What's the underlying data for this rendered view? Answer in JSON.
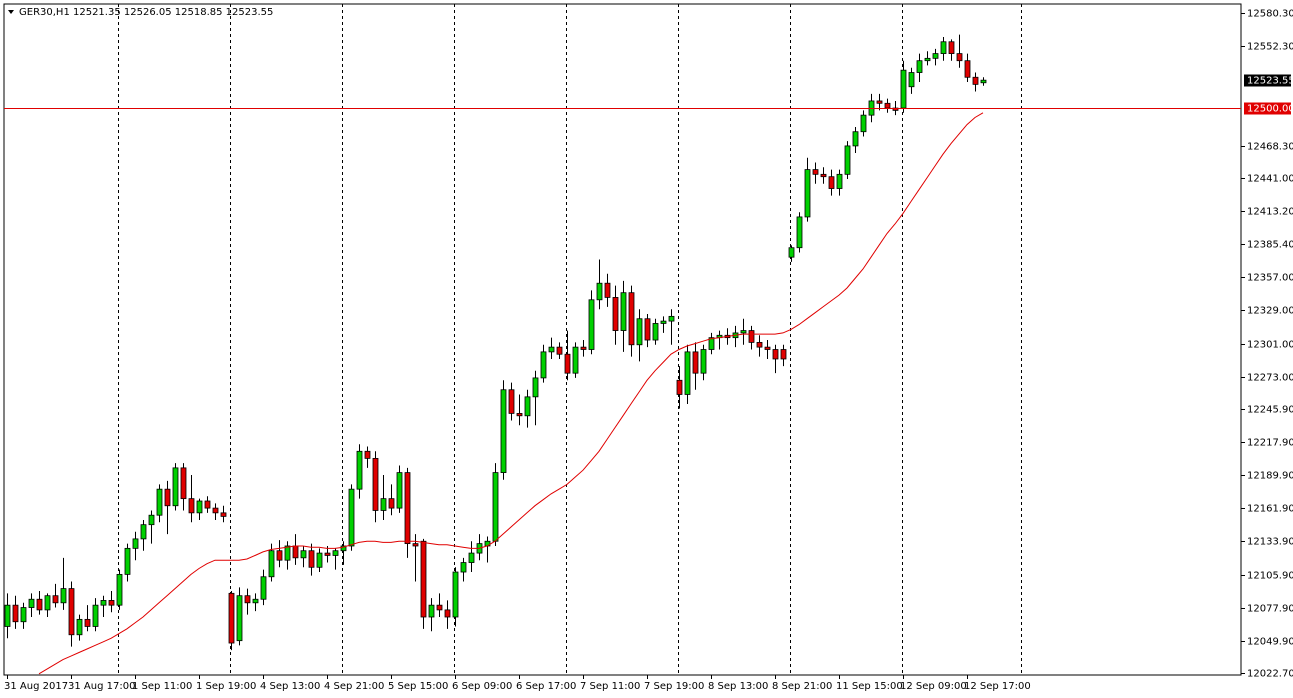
{
  "chart_data": {
    "type": "candlestick",
    "header": "GER30,H1  12521.35 12526.05 12518.85 12523.55",
    "up_color": "#00d000",
    "down_color": "#e00000",
    "wick_color": "#000000",
    "ylim": [
      12021.0,
      12587.9
    ],
    "yticks": [
      {
        "value": 12580.3,
        "label": "12580.30"
      },
      {
        "value": 12552.3,
        "label": "12552.30"
      },
      {
        "value": 12468.3,
        "label": "12468.30"
      },
      {
        "value": 12441.0,
        "label": "12441.00"
      },
      {
        "value": 12413.2,
        "label": "12413.20"
      },
      {
        "value": 12385.4,
        "label": "12385.40"
      },
      {
        "value": 12357.0,
        "label": "12357.00"
      },
      {
        "value": 12329.0,
        "label": "12329.00"
      },
      {
        "value": 12301.0,
        "label": "12301.00"
      },
      {
        "value": 12273.0,
        "label": "12273.00"
      },
      {
        "value": 12245.9,
        "label": "12245.90"
      },
      {
        "value": 12217.9,
        "label": "12217.90"
      },
      {
        "value": 12189.9,
        "label": "12189.90"
      },
      {
        "value": 12161.9,
        "label": "12161.90"
      },
      {
        "value": 12133.9,
        "label": "12133.90"
      },
      {
        "value": 12105.9,
        "label": "12105.90"
      },
      {
        "value": 12077.9,
        "label": "12077.90"
      },
      {
        "value": 12049.9,
        "label": "12049.90"
      },
      {
        "value": 12022.7,
        "label": "12022.70"
      }
    ],
    "hline": {
      "value": 12500,
      "label": "12500.00",
      "color": "#e00000"
    },
    "price_label": {
      "value": 12523.55,
      "label": "12523.55"
    },
    "categories": [
      "31 Aug 2017",
      null,
      null,
      null,
      null,
      null,
      null,
      null,
      "31 Aug 17:00",
      null,
      null,
      null,
      null,
      null,
      null,
      null,
      "1 Sep 11:00",
      null,
      null,
      null,
      null,
      null,
      null,
      null,
      "1 Sep 19:00",
      null,
      null,
      null,
      null,
      null,
      null,
      null,
      "4 Sep 13:00",
      null,
      null,
      null,
      null,
      null,
      null,
      null,
      "4 Sep 21:00",
      null,
      null,
      null,
      null,
      null,
      null,
      null,
      "5 Sep 15:00",
      null,
      null,
      null,
      null,
      null,
      null,
      null,
      "6 Sep 09:00",
      null,
      null,
      null,
      null,
      null,
      null,
      null,
      "6 Sep 17:00",
      null,
      null,
      null,
      null,
      null,
      null,
      null,
      "7 Sep 11:00",
      null,
      null,
      null,
      null,
      null,
      null,
      null,
      "7 Sep 19:00",
      null,
      null,
      null,
      null,
      null,
      null,
      null,
      "8 Sep 13:00",
      null,
      null,
      null,
      null,
      null,
      null,
      null,
      "8 Sep 21:00",
      null,
      null,
      null,
      null,
      null,
      null,
      null,
      "11 Sep 15:00",
      null,
      null,
      null,
      null,
      null,
      null,
      null,
      "12 Sep 09:00",
      null,
      null,
      null,
      null,
      null,
      null,
      null,
      "12 Sep 17:00",
      null,
      null
    ],
    "ohlc": [
      [
        12062,
        12090,
        12052,
        12080
      ],
      [
        12080,
        12088,
        12060,
        12066
      ],
      [
        12066,
        12082,
        12060,
        12078
      ],
      [
        12078,
        12090,
        12070,
        12085
      ],
      [
        12085,
        12092,
        12072,
        12076
      ],
      [
        12076,
        12090,
        12070,
        12088
      ],
      [
        12088,
        12098,
        12078,
        12082
      ],
      [
        12082,
        12120,
        12076,
        12094
      ],
      [
        12094,
        12100,
        12045,
        12055
      ],
      [
        12055,
        12072,
        12050,
        12068
      ],
      [
        12068,
        12080,
        12058,
        12062
      ],
      [
        12062,
        12086,
        12058,
        12080
      ],
      [
        12080,
        12088,
        12070,
        12084
      ],
      [
        12084,
        12092,
        12074,
        12080
      ],
      [
        12080,
        12110,
        12076,
        12106
      ],
      [
        12106,
        12132,
        12100,
        12128
      ],
      [
        12128,
        12142,
        12118,
        12136
      ],
      [
        12136,
        12152,
        12126,
        12148
      ],
      [
        12148,
        12160,
        12132,
        12156
      ],
      [
        12156,
        12182,
        12150,
        12178
      ],
      [
        12178,
        12185,
        12140,
        12164
      ],
      [
        12164,
        12200,
        12160,
        12196
      ],
      [
        12196,
        12200,
        12160,
        12170
      ],
      [
        12170,
        12190,
        12150,
        12158
      ],
      [
        12158,
        12170,
        12152,
        12168
      ],
      [
        12168,
        12172,
        12158,
        12162
      ],
      [
        12162,
        12166,
        12152,
        12158
      ],
      [
        12158,
        12164,
        12150,
        12155
      ],
      [
        12090,
        12092,
        12042,
        12048
      ],
      [
        12050,
        12095,
        12046,
        12088
      ],
      [
        12088,
        12094,
        12072,
        12082
      ],
      [
        12082,
        12090,
        12075,
        12085
      ],
      [
        12085,
        12110,
        12080,
        12104
      ],
      [
        12104,
        12132,
        12100,
        12126
      ],
      [
        12126,
        12135,
        12112,
        12118
      ],
      [
        12118,
        12134,
        12110,
        12130
      ],
      [
        12130,
        12140,
        12114,
        12120
      ],
      [
        12120,
        12130,
        12112,
        12126
      ],
      [
        12126,
        12132,
        12105,
        12112
      ],
      [
        12112,
        12128,
        12108,
        12124
      ],
      [
        12124,
        12130,
        12116,
        12122
      ],
      [
        12122,
        12128,
        12110,
        12126
      ],
      [
        12126,
        12134,
        12114,
        12130
      ],
      [
        12130,
        12182,
        12126,
        12178
      ],
      [
        12178,
        12216,
        12170,
        12210
      ],
      [
        12210,
        12214,
        12196,
        12204
      ],
      [
        12204,
        12210,
        12150,
        12160
      ],
      [
        12160,
        12190,
        12152,
        12170
      ],
      [
        12170,
        12182,
        12156,
        12162
      ],
      [
        12162,
        12198,
        12158,
        12192
      ],
      [
        12192,
        12196,
        12120,
        12132
      ],
      [
        12132,
        12140,
        12100,
        12130
      ],
      [
        12134,
        12136,
        12060,
        12070
      ],
      [
        12070,
        12086,
        12058,
        12080
      ],
      [
        12080,
        12090,
        12070,
        12076
      ],
      [
        12076,
        12084,
        12060,
        12070
      ],
      [
        12070,
        12112,
        12062,
        12108
      ],
      [
        12108,
        12120,
        12100,
        12116
      ],
      [
        12116,
        12134,
        12108,
        12124
      ],
      [
        12124,
        12140,
        12118,
        12132
      ],
      [
        12130,
        12138,
        12116,
        12134
      ],
      [
        12134,
        12200,
        12130,
        12192
      ],
      [
        12192,
        12270,
        12186,
        12262
      ],
      [
        12262,
        12268,
        12236,
        12242
      ],
      [
        12242,
        12258,
        12232,
        12240
      ],
      [
        12240,
        12262,
        12230,
        12256
      ],
      [
        12256,
        12278,
        12232,
        12272
      ],
      [
        12272,
        12300,
        12268,
        12294
      ],
      [
        12294,
        12306,
        12288,
        12298
      ],
      [
        12298,
        12302,
        12288,
        12292
      ],
      [
        12292,
        12312,
        12270,
        12276
      ],
      [
        12276,
        12302,
        12272,
        12298
      ],
      [
        12298,
        12304,
        12290,
        12296
      ],
      [
        12296,
        12346,
        12292,
        12338
      ],
      [
        12338,
        12372,
        12330,
        12352
      ],
      [
        12352,
        12360,
        12332,
        12340
      ],
      [
        12340,
        12350,
        12300,
        12312
      ],
      [
        12312,
        12354,
        12294,
        12344
      ],
      [
        12344,
        12350,
        12290,
        12300
      ],
      [
        12300,
        12330,
        12286,
        12322
      ],
      [
        12322,
        12326,
        12298,
        12304
      ],
      [
        12304,
        12322,
        12300,
        12318
      ],
      [
        12318,
        12324,
        12310,
        12320
      ],
      [
        12320,
        12330,
        12300,
        12324
      ],
      [
        12270,
        12282,
        12246,
        12258
      ],
      [
        12258,
        12300,
        12250,
        12294
      ],
      [
        12294,
        12302,
        12262,
        12276
      ],
      [
        12276,
        12300,
        12270,
        12296
      ],
      [
        12296,
        12310,
        12292,
        12306
      ],
      [
        12306,
        12312,
        12296,
        12308
      ],
      [
        12308,
        12314,
        12300,
        12306
      ],
      [
        12306,
        12316,
        12298,
        12310
      ],
      [
        12310,
        12322,
        12300,
        12312
      ],
      [
        12312,
        12316,
        12296,
        12302
      ],
      [
        12302,
        12308,
        12290,
        12298
      ],
      [
        12298,
        12304,
        12288,
        12296
      ],
      [
        12296,
        12300,
        12276,
        12288
      ],
      [
        12296,
        12300,
        12282,
        12288
      ],
      [
        12374,
        12384,
        12370,
        12382
      ],
      [
        12382,
        12412,
        12378,
        12408
      ],
      [
        12408,
        12458,
        12404,
        12448
      ],
      [
        12448,
        12454,
        12436,
        12444
      ],
      [
        12444,
        12450,
        12436,
        12442
      ],
      [
        12442,
        12448,
        12426,
        12432
      ],
      [
        12432,
        12448,
        12426,
        12444
      ],
      [
        12444,
        12472,
        12440,
        12468
      ],
      [
        12468,
        12484,
        12462,
        12480
      ],
      [
        12480,
        12498,
        12476,
        12494
      ],
      [
        12494,
        12512,
        12488,
        12506
      ],
      [
        12506,
        12512,
        12498,
        12504
      ],
      [
        12504,
        12508,
        12496,
        12500
      ],
      [
        12500,
        12506,
        12494,
        12498
      ],
      [
        12500,
        12540,
        12496,
        12532
      ],
      [
        12518,
        12534,
        12512,
        12530
      ],
      [
        12530,
        12546,
        12522,
        12540
      ],
      [
        12540,
        12548,
        12536,
        12542
      ],
      [
        12542,
        12550,
        12536,
        12546
      ],
      [
        12546,
        12560,
        12540,
        12556
      ],
      [
        12556,
        12558,
        12540,
        12546
      ],
      [
        12546,
        12562,
        12534,
        12540
      ],
      [
        12540,
        12546,
        12522,
        12526
      ],
      [
        12526,
        12530,
        12514,
        12520
      ],
      [
        12521.35,
        12526.05,
        12518.85,
        12523.55
      ]
    ],
    "ma": {
      "color": "#e00000",
      "values": [
        null,
        null,
        null,
        null,
        12022,
        12026,
        12030,
        12034,
        12037,
        12040,
        12043,
        12046,
        12049,
        12052,
        12056,
        12060,
        12065,
        12070,
        12076,
        12082,
        12088,
        12094,
        12100,
        12106,
        12111,
        12115,
        12118,
        12118,
        12118,
        12118,
        12119,
        12122,
        12125,
        12127,
        12128,
        12129,
        12130,
        12130,
        12129,
        12129,
        12128,
        12128,
        12129,
        12131,
        12133,
        12134,
        12134,
        12133,
        12133,
        12134,
        12134,
        12134,
        12133,
        12132,
        12131,
        12131,
        12130,
        12129,
        12128,
        12128,
        12130,
        12134,
        12140,
        12146,
        12152,
        12158,
        12164,
        12169,
        12174,
        12178,
        12182,
        12188,
        12194,
        12202,
        12210,
        12220,
        12230,
        12240,
        12250,
        12260,
        12270,
        12278,
        12285,
        12292,
        12296,
        12299,
        12301,
        12303,
        12305,
        12306,
        12307,
        12308,
        12309,
        12309,
        12309,
        12309,
        12309,
        12310,
        12313,
        12317,
        12322,
        12327,
        12332,
        12337,
        12342,
        12348,
        12356,
        12364,
        12374,
        12384,
        12394,
        12402,
        12411,
        12421,
        12431,
        12441,
        12451,
        12461,
        12470,
        12478,
        12486,
        12492,
        12496
      ]
    }
  }
}
